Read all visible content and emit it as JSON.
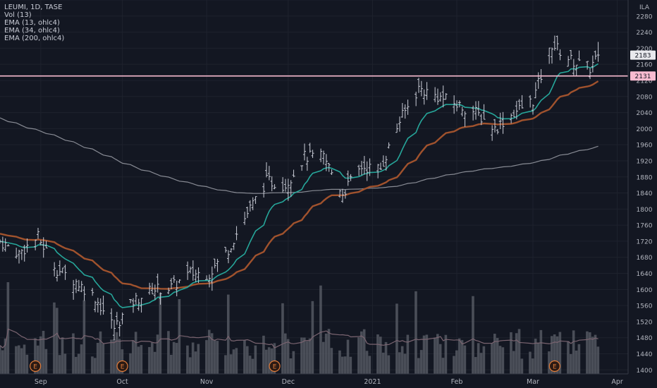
{
  "legend": {
    "symbol": "LEUMI, 1D, TASE",
    "vol": "Vol (13)",
    "ema13": "EMA (13, ohlc4)",
    "ema34": "EMA (34, ohlc4)",
    "ema200": "EMA (200, ohlc4)"
  },
  "chart_data": {
    "type": "ohlc",
    "currency": "ILA",
    "x_range": [
      "2020-08-17",
      "2021-04-05"
    ],
    "ylim": [
      1390,
      2320
    ],
    "y_ticks": [
      1400,
      1440,
      1480,
      1520,
      1560,
      1600,
      1640,
      1680,
      1720,
      1760,
      1800,
      1840,
      1880,
      1920,
      1960,
      2000,
      2040,
      2080,
      2120,
      2160,
      2200,
      2240,
      2280,
      2320
    ],
    "x_ticks": [
      {
        "label": "Sep",
        "date": "2020-09-01"
      },
      {
        "label": "Oct",
        "date": "2020-10-01"
      },
      {
        "label": "Nov",
        "date": "2020-11-01"
      },
      {
        "label": "Dec",
        "date": "2020-12-01"
      },
      {
        "label": "2021",
        "date": "2021-01-01"
      },
      {
        "label": "Feb",
        "date": "2021-02-01"
      },
      {
        "label": "Mar",
        "date": "2021-03-01"
      },
      {
        "label": "Apr",
        "date": "2021-04-01"
      }
    ],
    "horizontal_line": {
      "value": 2131,
      "label": "2131",
      "color": "#f8bbd0"
    },
    "last_price": {
      "value": 2183,
      "label": "2183"
    },
    "earnings_markers": [
      {
        "label": "E",
        "date": "2020-08-30"
      },
      {
        "label": "E",
        "date": "2020-10-01"
      },
      {
        "label": "E",
        "date": "2020-11-26"
      },
      {
        "label": "E",
        "date": "2021-03-09"
      }
    ],
    "key_closes": [
      {
        "date": "2020-08-17",
        "close": 1720
      },
      {
        "date": "2020-08-24",
        "close": 1690
      },
      {
        "date": "2020-08-31",
        "close": 1730
      },
      {
        "date": "2020-09-07",
        "close": 1650
      },
      {
        "date": "2020-09-14",
        "close": 1620
      },
      {
        "date": "2020-09-21",
        "close": 1580
      },
      {
        "date": "2020-09-28",
        "close": 1505
      },
      {
        "date": "2020-10-05",
        "close": 1570
      },
      {
        "date": "2020-10-12",
        "close": 1600
      },
      {
        "date": "2020-10-19",
        "close": 1605
      },
      {
        "date": "2020-10-26",
        "close": 1640
      },
      {
        "date": "2020-11-02",
        "close": 1640
      },
      {
        "date": "2020-11-09",
        "close": 1700
      },
      {
        "date": "2020-11-16",
        "close": 1790
      },
      {
        "date": "2020-11-23",
        "close": 1870
      },
      {
        "date": "2020-11-30",
        "close": 1860
      },
      {
        "date": "2020-12-07",
        "close": 1930
      },
      {
        "date": "2020-12-14",
        "close": 1930
      },
      {
        "date": "2020-12-21",
        "close": 1840
      },
      {
        "date": "2020-12-28",
        "close": 1905
      },
      {
        "date": "2021-01-04",
        "close": 1900
      },
      {
        "date": "2021-01-11",
        "close": 2020
      },
      {
        "date": "2021-01-18",
        "close": 2100
      },
      {
        "date": "2021-01-25",
        "close": 2080
      },
      {
        "date": "2021-02-01",
        "close": 2060
      },
      {
        "date": "2021-02-08",
        "close": 2040
      },
      {
        "date": "2021-02-15",
        "close": 2000
      },
      {
        "date": "2021-02-22",
        "close": 2040
      },
      {
        "date": "2021-03-01",
        "close": 2070
      },
      {
        "date": "2021-03-08",
        "close": 2210
      },
      {
        "date": "2021-03-15",
        "close": 2170
      },
      {
        "date": "2021-03-22",
        "close": 2150
      },
      {
        "date": "2021-03-25",
        "close": 2183
      }
    ],
    "colors": {
      "background": "#131722",
      "bars": "#c9ccd6",
      "ema13": "#26a69a",
      "ema34": "#a0522d",
      "ema200": "#888b94",
      "volume": "#555861",
      "volume_ma": "#7a6470",
      "hline": "#f8bbd0",
      "earnings": "#e07b39"
    }
  }
}
